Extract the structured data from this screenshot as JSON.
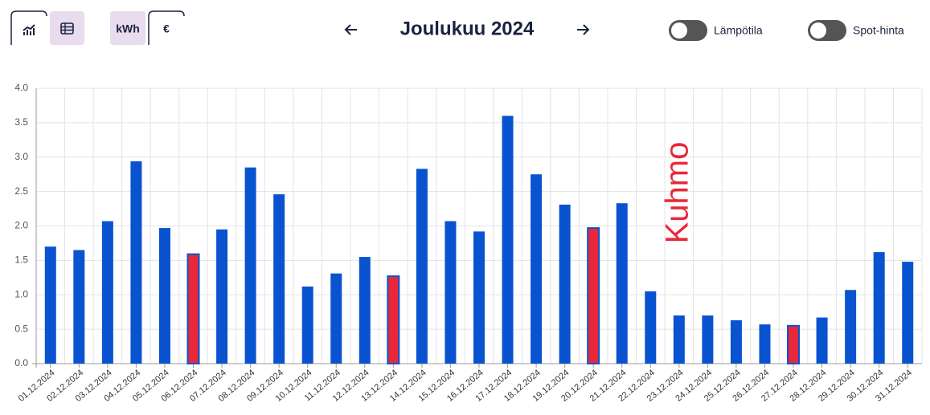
{
  "header": {
    "title": "Joulukuu 2024",
    "unit_buttons": [
      "kWh",
      "€"
    ],
    "toggles": [
      "Lämpötila",
      "Spot-hinta"
    ]
  },
  "chart_data": {
    "type": "bar",
    "categories": [
      "01.12.2024",
      "02.12.2024",
      "03.12.2024",
      "04.12.2024",
      "05.12.2024",
      "06.12.2024",
      "07.12.2024",
      "08.12.2024",
      "09.12.2024",
      "10.12.2024",
      "11.12.2024",
      "12.12.2024",
      "13.12.2024",
      "14.12.2024",
      "15.12.2024",
      "16.12.2024",
      "17.12.2024",
      "18.12.2024",
      "19.12.2024",
      "20.12.2024",
      "21.12.2024",
      "22.12.2024",
      "23.12.2024",
      "24.12.2024",
      "25.12.2024",
      "26.12.2024",
      "27.12.2024",
      "28.12.2024",
      "29.12.2024",
      "30.12.2024",
      "31.12.2024"
    ],
    "values": [
      1.7,
      1.65,
      2.07,
      2.94,
      1.97,
      1.59,
      1.95,
      2.85,
      2.46,
      1.12,
      1.31,
      1.55,
      1.27,
      2.83,
      2.07,
      1.92,
      3.6,
      2.75,
      2.31,
      1.97,
      2.33,
      1.05,
      0.7,
      0.7,
      0.63,
      0.57,
      0.55,
      0.67,
      1.07,
      1.62,
      1.48
    ],
    "colors": [
      "#0a53d0",
      "#0a53d0",
      "#0a53d0",
      "#0a53d0",
      "#0a53d0",
      "#e8283a",
      "#0a53d0",
      "#0a53d0",
      "#0a53d0",
      "#0a53d0",
      "#0a53d0",
      "#0a53d0",
      "#e8283a",
      "#0a53d0",
      "#0a53d0",
      "#0a53d0",
      "#0a53d0",
      "#0a53d0",
      "#0a53d0",
      "#e8283a",
      "#0a53d0",
      "#0a53d0",
      "#0a53d0",
      "#0a53d0",
      "#0a53d0",
      "#0a53d0",
      "#e8283a",
      "#0a53d0",
      "#0a53d0",
      "#0a53d0",
      "#0a53d0"
    ],
    "outline_color": "#0a53d0",
    "ylim": [
      0,
      4
    ],
    "yticks": [
      {
        "value": 0,
        "label": "0.0"
      },
      {
        "value": 0.5,
        "label": "0.5"
      },
      {
        "value": 1,
        "label": "1.0"
      },
      {
        "value": 1.5,
        "label": "1.5"
      },
      {
        "value": 2,
        "label": "2.0"
      },
      {
        "value": 2.5,
        "label": "2.5"
      },
      {
        "value": 3,
        "label": "3.0"
      },
      {
        "value": 3.5,
        "label": "3.5"
      },
      {
        "value": 4,
        "label": "4.0"
      }
    ],
    "grid": true,
    "annotation": "Kuhmo",
    "annotation_color": "#e8283a"
  }
}
